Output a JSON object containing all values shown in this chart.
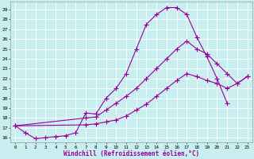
{
  "background_color": "#c8eef0",
  "grid_color": "#ffffff",
  "line_color": "#990099",
  "xlabel": "Windchill (Refroidissement éolien,°C)",
  "xlabel_fontsize": 5.5,
  "ylim": [
    15.5,
    29.8
  ],
  "xlim": [
    -0.5,
    23.5
  ],
  "curve1_x": [
    0,
    1,
    2,
    3,
    4,
    5,
    6,
    7,
    8,
    9,
    10,
    11,
    12,
    13,
    14,
    15,
    16,
    17,
    18,
    19,
    20,
    21
  ],
  "curve1_y": [
    17.2,
    16.5,
    15.9,
    16.0,
    16.1,
    16.2,
    16.5,
    18.5,
    18.4,
    20.0,
    21.0,
    22.5,
    25.0,
    27.5,
    28.5,
    29.2,
    29.2,
    28.5,
    26.2,
    24.2,
    22.0,
    19.5
  ],
  "curve2_x": [
    0,
    7,
    8,
    9,
    10,
    11,
    12,
    13,
    14,
    15,
    16,
    17,
    18,
    19,
    20,
    21,
    22,
    23
  ],
  "curve2_y": [
    17.2,
    18.0,
    18.1,
    18.8,
    19.5,
    20.2,
    21.0,
    22.0,
    23.0,
    24.0,
    25.0,
    25.8,
    25.0,
    24.5,
    23.5,
    22.5,
    21.5,
    22.2
  ],
  "curve3_x": [
    0,
    7,
    8,
    9,
    10,
    11,
    12,
    13,
    14,
    15,
    16,
    17,
    18,
    19,
    20,
    21,
    22,
    23
  ],
  "curve3_y": [
    17.2,
    17.3,
    17.4,
    17.6,
    17.8,
    18.2,
    18.8,
    19.4,
    20.2,
    21.0,
    21.8,
    22.5,
    22.2,
    21.8,
    21.5,
    21.0,
    21.5,
    22.2
  ]
}
